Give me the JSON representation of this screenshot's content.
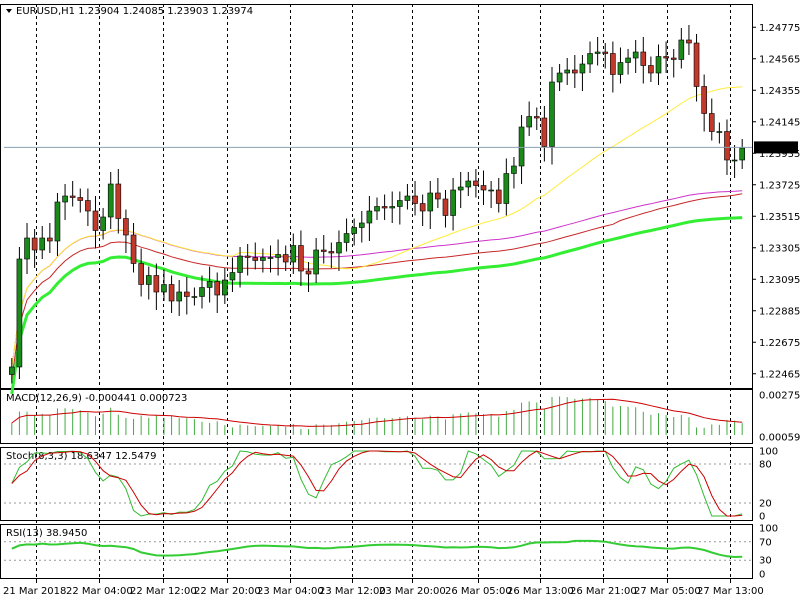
{
  "window": {
    "symbol_header": "EURUSD,H1  1.23904 1.24085 1.23903 1.23974"
  },
  "colors": {
    "bull_candle": "#1a8a1a",
    "bear_candle": "#c0392b",
    "ma_fast": "#ffeb3b",
    "ma_slow_bright": "#33ee33",
    "ma_red": "#c62828",
    "ma_magenta": "#cc33cc",
    "macd_hist": "#44aa44",
    "macd_signal": "#cc0000",
    "stoch_main": "#33bb33",
    "stoch_signal": "#cc0000",
    "rsi_line": "#33cc33",
    "grid": "#000000",
    "current_price_line": "#8aa0b0",
    "current_price_box": "#000000",
    "current_price_text": "#ffffff"
  },
  "chart_data": [
    {
      "type": "candlestick",
      "title": "EURUSD,H1",
      "ohlc_header": "1.23904 1.24085 1.23903 1.23974",
      "current_price": "1.23974",
      "ylim": [
        1.2237,
        1.2493
      ],
      "y_ticks": [
        "1.24775",
        "1.24565",
        "1.24355",
        "1.24145",
        "1.23935",
        "1.23725",
        "1.23515",
        "1.23305",
        "1.23095",
        "1.22885",
        "1.22675",
        "1.22465"
      ],
      "x_ticks": [
        "21 Mar 2018",
        "22 Mar 04:00",
        "22 Mar 12:00",
        "22 Mar 20:00",
        "23 Mar 04:00",
        "23 Mar 12:00",
        "23 Mar 20:00",
        "26 Mar 05:00",
        "26 Mar 13:00",
        "26 Mar 21:00",
        "27 Mar 05:00",
        "27 Mar 13:00"
      ],
      "series": [
        {
          "name": "price",
          "values": [
            1.2251,
            1.2323,
            1.2337,
            1.2329,
            1.2337,
            1.2335,
            1.2361,
            1.2365,
            1.2364,
            1.2362,
            1.2355,
            1.2342,
            1.2351,
            1.2373,
            1.235,
            1.2339,
            1.232,
            1.2306,
            1.2312,
            1.2301,
            1.2306,
            1.2295,
            1.2301,
            1.2298,
            1.2298,
            1.2304,
            1.2308,
            1.2299,
            1.2309,
            1.2314,
            1.2325,
            1.2324,
            1.2322,
            1.2324,
            1.2324,
            1.2326,
            1.2321,
            1.2332,
            1.2315,
            1.2313,
            1.2329,
            1.2328,
            1.2327,
            1.2334,
            1.234,
            1.2344,
            1.2347,
            1.2355,
            1.2358,
            1.2357,
            1.2358,
            1.2362,
            1.2365,
            1.236,
            1.2355,
            1.2367,
            1.2363,
            1.2352,
            1.2369,
            1.2371,
            1.2375,
            1.2372,
            1.2369,
            1.2369,
            1.236,
            1.238,
            1.2385,
            1.2411,
            1.2418,
            1.2417,
            1.2398,
            1.2441,
            1.2447,
            1.2449,
            1.2447,
            1.2453,
            1.246,
            1.2461,
            1.246,
            1.2446,
            1.2454,
            1.2457,
            1.2461,
            1.2452,
            1.2447,
            1.2458,
            1.2457,
            1.2456,
            1.2469,
            1.2467,
            1.2438,
            1.242,
            1.2408,
            1.2408,
            1.2389,
            1.2389,
            1.2397
          ]
        }
      ]
    },
    {
      "type": "line",
      "title": "MACD(12,26,9) -0.000441 0.000723",
      "y_ticks": [
        "0.002757",
        "0.000593"
      ]
    },
    {
      "type": "line",
      "title": "Stoch(8,3,3) 18.6347 12.5479",
      "y_ticks": [
        "100",
        "80",
        "20",
        "0"
      ]
    },
    {
      "type": "line",
      "title": "RSI(13) 38.9450",
      "y_ticks": [
        "100",
        "70",
        "30",
        "0"
      ]
    }
  ]
}
